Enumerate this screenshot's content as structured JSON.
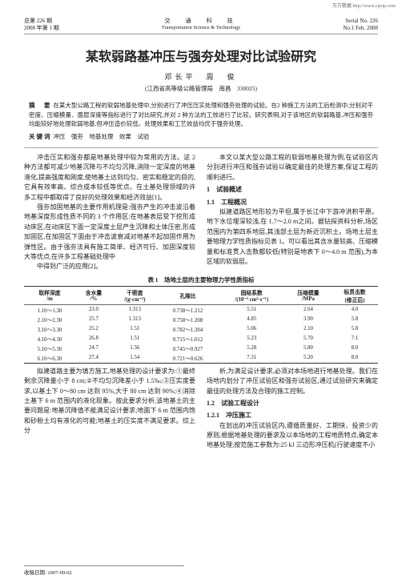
{
  "corner_tag": "万方数据    http://www.cqvip.com",
  "header": {
    "left_l1": "总第 226 期",
    "left_l2": "2008 年第 1 期",
    "center_cn": "交　通　科　技",
    "center_en": "Transportation Science & Technology",
    "right_l1": "Serial No. 226",
    "right_l2": "No.1 Feb. 2008"
  },
  "title": "某软弱路基冲压与强夯处理对比试验研究",
  "authors": "邓长平　周　俊",
  "affil": "(江西省高等级公路管理局　南昌　330025)",
  "abstract_label": "摘　要",
  "abstract_text": "在某大型公路工程的软弱地基处理中,分别进行了冲压压实处理和强夯处理的试验。在2 种施工方法的工后检测中,分别对干密度、压缩模量、面层深度等指标进行了对比研究,并对 2 种方法的工效进行了比较。研究表明,对于该地区的软弱路基,冲压和强夯均能较好地处理软弱地基,但冲压造价较低、处理效果和工艺效益均优于强夯处理。",
  "kw_label": "关键词",
  "kw_text": "冲压　强夯　地基处理　效果　试验",
  "body": {
    "p1": "冲击压实和强夯都是地基处理中较为常用的方法。这 2 种方法都可减少地基沉降与不均匀沉降,消除一定深度的地基液化,提高强度和刚度,使地基土达到均匀、密实和稳定的目的,它具有效率高、综合成本较低等优点。在土基处理领域的许多工程中都取得了良好的处理效果和经济效益[1]。",
    "p2": "强夯加固地基的主要作用机理是:强夯产生的冲击波沿着地基深度形成性质不同的 3 个作用区:在地基表层受下挖形成动床区,在动床区下面一定深度土层产生沉降和土体压密,形成加固区,在加固区下面由于冲击波衰减对地基不起加固作用为弹性区。由于强夯法具有施工简单、经济可行、加固深度较大等优点,在许多工程基础处理中",
    "p3": "中得到广泛的应用[2]。",
    "p4": "本文以某大型公路工程的软弱地基处理为例,在试验区内分别进行冲压和强夯试验以确定最佳的处理方案,保证工程的顺利进行。",
    "s1": "1　试验概述",
    "s11": "1.1　工程概况",
    "p5": "拟建道路区地形较为平坦,属于长江中下游冲洪积平原。地下水位埋深较浅,在 1.7～2.0 m之间。据钻探资料分析,场区范围内为第四系地层,其浅部土层为新近沉积土。场地土层主要物理力学性质指标见表 1。可以看出其含水量较高、压缩模量和标准贯入击数都较低(特别是地表下 0～4.0 m 范围),为本区域的软弱层。",
    "p6": "拟建道路主要为填方施工,地基处理的设计要求为:①最终剩余沉降量小于 8 cm;②不均匀沉降差小于 1.5‰;③压实度要求,以基土下 0～80 cm 达到 95%,大于 80 cm 达到 90%;④消除土基下 6 m 范围内的液化现象。按此要求分析,该地基土的主要问题是:地基沉降值不能满足设计要求;地面下 6 m 范围内饱和砂粉土均有液化的可能;地基土的压实度不满足要求。综上分",
    "p7": "析,为满足设计要求,必须对本场地进行地基处理。我们在场地内划分了冲压试验区和强夯试验区,通过试验研究来确定最佳的处理方法及合理的施工控制。",
    "s12": "1.2　试验工程设计",
    "s121": "1.2.1　冲压施工",
    "p8": "在划出的冲压试验区内,遵循质量好、工期快、投资少的原则,根据地基处理的要求及以本场地的工程地质特点,确定本地基处理;按范施工参数为:25 kJ 三边形冲压机(行驶速度不小",
    "received": "收稿日期: 2007-09-02"
  },
  "table": {
    "caption": "表 1　场地土层的主要物理力学性质指标",
    "headers": [
      "取样深度\n/m",
      "含水量\n/%",
      "干密度\n/(g·cm⁻³)",
      "孔隙比",
      "固结系数\n/(10⁻³ cm²·s⁻¹)",
      "压缩模量\n/MPa",
      "标贯击数\n(修正后)"
    ],
    "rows": [
      [
        "1.10～1.30",
        "23.0",
        "1.313",
        "0.738～1.212",
        "5.51",
        "2.64",
        "4.0"
      ],
      [
        "2.10～2.30",
        "25.7",
        "1.313",
        "0.758～1.208",
        "4.85",
        "3.90",
        "5.8"
      ],
      [
        "3.10～3.30",
        "25.2",
        "1.51",
        "0.782～1.304",
        "5.06",
        "2.10",
        "5.8"
      ],
      [
        "4.10～4.30",
        "26.8",
        "1.51",
        "0.715～1.012",
        "5.23",
        "5.70",
        "7.1"
      ],
      [
        "5.10～5.30",
        "24.7",
        "1.56",
        "0.745～0.927",
        "5.28",
        "5.80",
        "8.0"
      ],
      [
        "6.10～6.30",
        "27.4",
        "1.54",
        "0.721～0.626",
        "7.31",
        "5.20",
        "8.0"
      ]
    ]
  }
}
